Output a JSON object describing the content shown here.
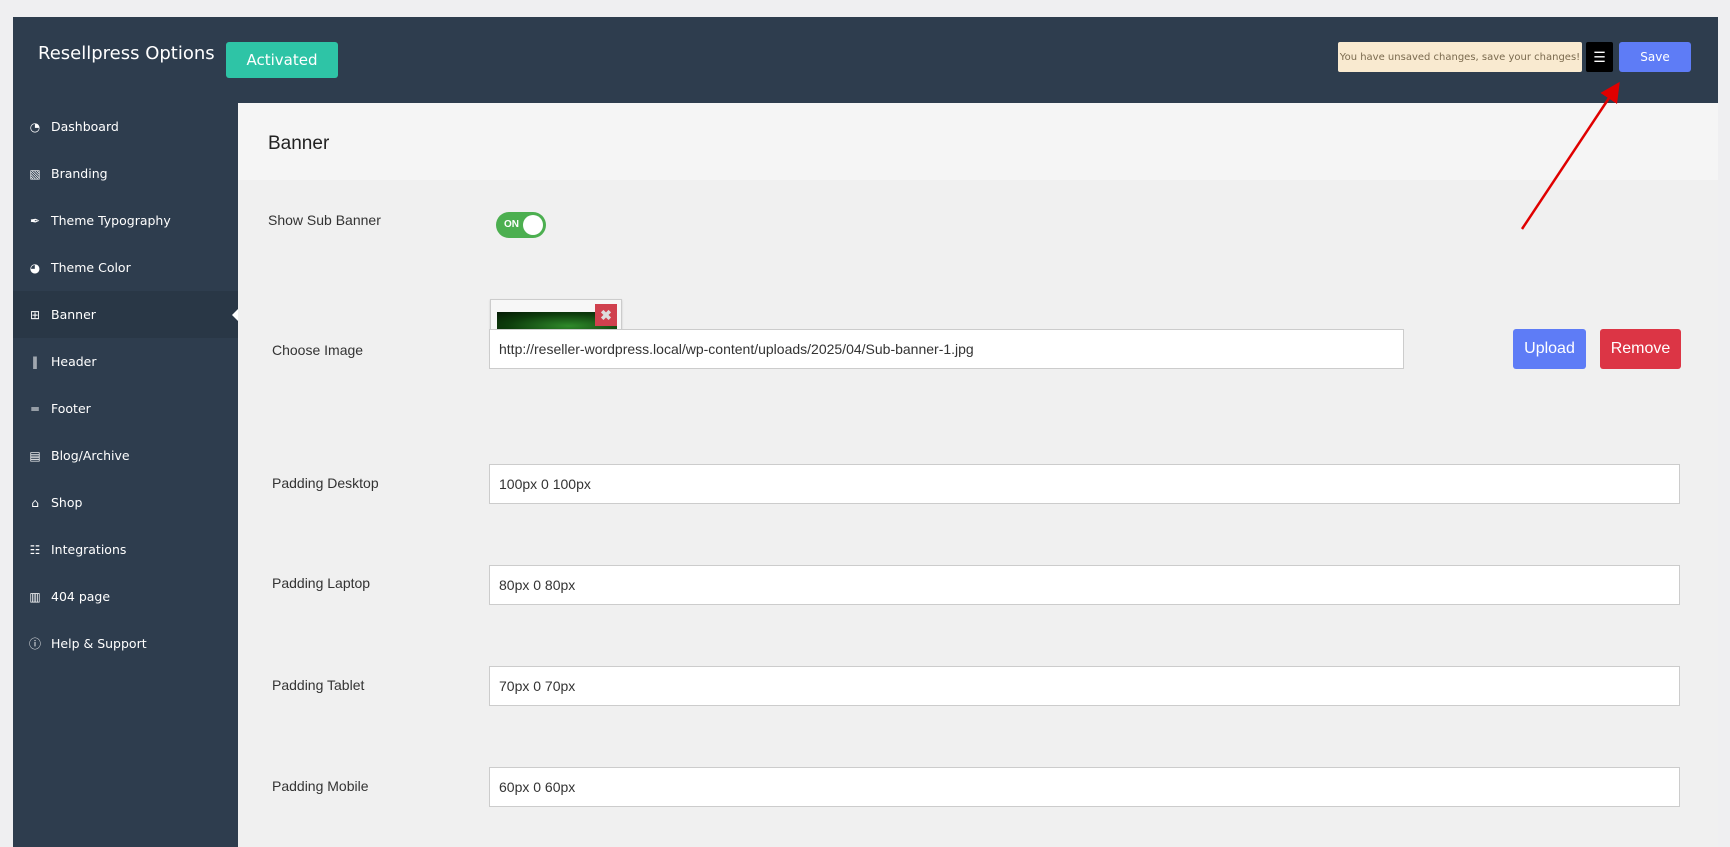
{
  "header": {
    "title": "Resellpress Options",
    "status": "Activated",
    "notice": "You have unsaved changes, save your changes!",
    "menu_icon": "indent-icon",
    "save_label": "Save"
  },
  "sidebar": {
    "active": "Banner",
    "items": [
      {
        "label": "Dashboard",
        "icon": "◔"
      },
      {
        "label": "Branding",
        "icon": "▧"
      },
      {
        "label": "Theme Typography",
        "icon": "✒"
      },
      {
        "label": "Theme Color",
        "icon": "◕"
      },
      {
        "label": "Banner",
        "icon": "⊞"
      },
      {
        "label": "Header",
        "icon": "‖"
      },
      {
        "label": "Footer",
        "icon": "═"
      },
      {
        "label": "Blog/Archive",
        "icon": "▤"
      },
      {
        "label": "Shop",
        "icon": "⌂"
      },
      {
        "label": "Integrations",
        "icon": "☷"
      },
      {
        "label": "404 page",
        "icon": "▥"
      },
      {
        "label": "Help & Support",
        "icon": "ⓘ"
      }
    ]
  },
  "main": {
    "section_title": "Banner",
    "show_sub_banner": {
      "label": "Show Sub Banner",
      "state": "ON"
    },
    "choose_image": {
      "label": "Choose Image",
      "url": "http://reseller-wordpress.local/wp-content/uploads/2025/04/Sub-banner-1.jpg",
      "upload_label": "Upload",
      "remove_label": "Remove",
      "delete_icon": "✖"
    },
    "padding_desktop": {
      "label": "Padding Desktop",
      "value": "100px 0 100px"
    },
    "padding_laptop": {
      "label": "Padding Laptop",
      "value": "80px 0 80px"
    },
    "padding_tablet": {
      "label": "Padding Tablet",
      "value": "70px 0 70px"
    },
    "padding_mobile": {
      "label": "Padding Mobile",
      "value": "60px 0 60px"
    }
  },
  "colors": {
    "accent": "#5e7cf6",
    "activated": "#2ec4a6",
    "danger": "#dc3545",
    "toggle_on": "#4caf50",
    "annotation_arrow": "#e00000"
  }
}
